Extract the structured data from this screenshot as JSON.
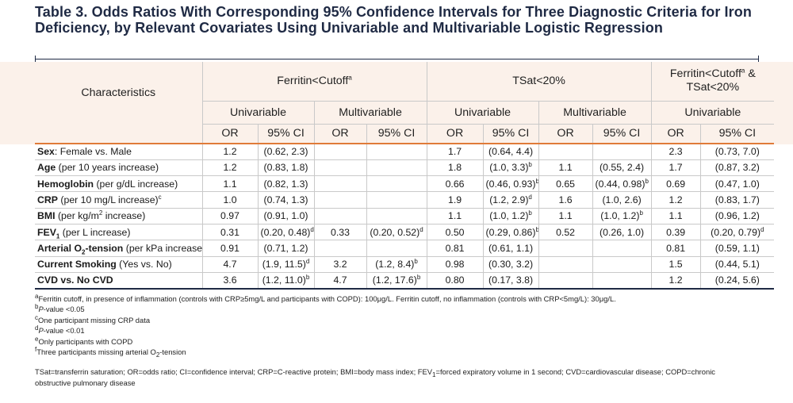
{
  "title": "Table 3. Odds Ratios With Corresponding 95% Confidence Intervals for Three Diagnostic Criteria for Iron Deficiency, by Relevant Covariates Using Univariable and Multivariable Logistic Regression",
  "headers": {
    "characteristics": "Characteristics",
    "group1": {
      "label": "Ferritin<Cutoff",
      "sup": "a"
    },
    "group2": {
      "label": "TSat<20%"
    },
    "group3": {
      "line1": "Ferritin<Cutoff",
      "sup": "a",
      "line1_tail": " &",
      "line2": "TSat<20%"
    },
    "univariable": "Univariable",
    "multivariable": "Multivariable",
    "or": "OR",
    "ci": "95% CI"
  },
  "rows": [
    {
      "label_bold": "Sex",
      "label_rest": ": Female vs. Male",
      "label_sup": "",
      "cells": [
        [
          "1.2",
          ""
        ],
        [
          "(0.62, 2.3)",
          ""
        ],
        [
          "",
          ""
        ],
        [
          "",
          ""
        ],
        [
          "1.7",
          ""
        ],
        [
          "(0.64, 4.4)",
          ""
        ],
        [
          "",
          ""
        ],
        [
          "",
          ""
        ],
        [
          "2.3",
          ""
        ],
        [
          "(0.73, 7.0)",
          ""
        ]
      ]
    },
    {
      "label_bold": "Age",
      "label_rest": " (per 10 years increase)",
      "label_sup": "",
      "cells": [
        [
          "1.2",
          ""
        ],
        [
          "(0.83, 1.8)",
          ""
        ],
        [
          "",
          ""
        ],
        [
          "",
          ""
        ],
        [
          "1.8",
          ""
        ],
        [
          "(1.0, 3.3)",
          "b"
        ],
        [
          "1.1",
          ""
        ],
        [
          "(0.55, 2.4)",
          ""
        ],
        [
          "1.7",
          ""
        ],
        [
          "(0.87, 3.2)",
          ""
        ]
      ]
    },
    {
      "label_bold": "Hemoglobin",
      "label_rest": " (per g/dL increase)",
      "label_sup": "",
      "cells": [
        [
          "1.1",
          ""
        ],
        [
          "(0.82, 1.3)",
          ""
        ],
        [
          "",
          ""
        ],
        [
          "",
          ""
        ],
        [
          "0.66",
          ""
        ],
        [
          "(0.46, 0.93)",
          "b"
        ],
        [
          "0.65",
          ""
        ],
        [
          "(0.44, 0.98)",
          "b"
        ],
        [
          "0.69",
          ""
        ],
        [
          "(0.47, 1.0)",
          ""
        ]
      ]
    },
    {
      "label_bold": "CRP",
      "label_rest": " (per 10 mg/L increase)",
      "label_sup": "c",
      "cells": [
        [
          "1.0",
          ""
        ],
        [
          "(0.74, 1.3)",
          ""
        ],
        [
          "",
          ""
        ],
        [
          "",
          ""
        ],
        [
          "1.9",
          ""
        ],
        [
          "(1.2, 2.9)",
          "d"
        ],
        [
          "1.6",
          ""
        ],
        [
          "(1.0, 2.6)",
          ""
        ],
        [
          "1.2",
          ""
        ],
        [
          "(0.83, 1.7)",
          ""
        ]
      ]
    },
    {
      "label_bold": "BMI",
      "label_rest": " (per kg/m",
      "label_rest_sup": "2",
      "label_rest2": " increase)",
      "label_sup": "",
      "cells": [
        [
          "0.97",
          ""
        ],
        [
          "(0.91, 1.0)",
          ""
        ],
        [
          "",
          ""
        ],
        [
          "",
          ""
        ],
        [
          "1.1",
          ""
        ],
        [
          "(1.0, 1.2)",
          "b"
        ],
        [
          "1.1",
          ""
        ],
        [
          "(1.0, 1.2)",
          "b"
        ],
        [
          "1.1",
          ""
        ],
        [
          "(0.96, 1.2)",
          ""
        ]
      ]
    },
    {
      "label_bold": "FEV",
      "label_bold_sub": "1",
      "label_rest": " (per L increase)",
      "label_sup": "",
      "cells": [
        [
          "0.31",
          ""
        ],
        [
          "(0.20, 0.48)",
          "d"
        ],
        [
          "0.33",
          ""
        ],
        [
          "(0.20, 0.52)",
          "d"
        ],
        [
          "0.50",
          ""
        ],
        [
          "(0.29, 0.86)",
          "b"
        ],
        [
          "0.52",
          ""
        ],
        [
          "(0.26, 1.0)",
          ""
        ],
        [
          "0.39",
          ""
        ],
        [
          "(0.20, 0.79)",
          "d"
        ]
      ]
    },
    {
      "label_bold": "Arterial O",
      "label_bold_sub": "2",
      "label_bold2": "-tension",
      "label_rest": " (per kPa increase)",
      "label_sup": "e,f",
      "cells": [
        [
          "0.91",
          ""
        ],
        [
          "(0.71, 1.2)",
          ""
        ],
        [
          "",
          ""
        ],
        [
          "",
          ""
        ],
        [
          "0.81",
          ""
        ],
        [
          "(0.61, 1.1)",
          ""
        ],
        [
          "",
          ""
        ],
        [
          "",
          ""
        ],
        [
          "0.81",
          ""
        ],
        [
          "(0.59, 1.1)",
          ""
        ]
      ]
    },
    {
      "label_bold": "Current Smoking",
      "label_rest": " (Yes vs. No)",
      "label_sup": "",
      "cells": [
        [
          "4.7",
          ""
        ],
        [
          "(1.9, 11.5)",
          "d"
        ],
        [
          "3.2",
          ""
        ],
        [
          "(1.2, 8.4)",
          "b"
        ],
        [
          "0.98",
          ""
        ],
        [
          "(0.30, 3.2)",
          ""
        ],
        [
          "",
          ""
        ],
        [
          "",
          ""
        ],
        [
          "1.5",
          ""
        ],
        [
          "(0.44, 5.1)",
          ""
        ]
      ]
    },
    {
      "label_bold": "CVD vs. No CVD",
      "label_rest": "",
      "label_sup": "",
      "cells": [
        [
          "3.6",
          ""
        ],
        [
          "(1.2, 11.0)",
          "b"
        ],
        [
          "4.7",
          ""
        ],
        [
          "(1.2, 17.6)",
          "b"
        ],
        [
          "0.80",
          ""
        ],
        [
          "(0.17, 3.8)",
          ""
        ],
        [
          "",
          ""
        ],
        [
          "",
          ""
        ],
        [
          "1.2",
          ""
        ],
        [
          "(0.24, 5.6)",
          ""
        ]
      ]
    }
  ],
  "footnotes": [
    {
      "mark": "a",
      "text": "Ferritin cutoff, in presence of inflammation (controls with CRP≥5mg/L and participants with COPD): 100μg/L. Ferritin cutoff, no inflammation (controls with CRP<5mg/L): 30μg/L."
    },
    {
      "mark": "b",
      "italic": "P",
      "text": "-value <0.05"
    },
    {
      "mark": "c",
      "text": "One participant missing CRP data"
    },
    {
      "mark": "d",
      "italic": "P",
      "text": "-value <0.01"
    },
    {
      "mark": "e",
      "text": "Only participants with COPD"
    },
    {
      "mark": "f",
      "text": "Three participants missing arterial O",
      "sub": "2",
      "text2": "-tension"
    }
  ],
  "abbreviations": {
    "text": "TSat=transferrin saturation; OR=odds ratio; CI=confidence interval; CRP=C-reactive protein; BMI=body mass index; FEV",
    "sub": "1",
    "text2": "=forced expiratory volume in 1 second; CVD=cardiovascular disease; COPD=chronic obstructive pulmonary disease"
  },
  "colors": {
    "title": "#1f2a44",
    "header_band": "#fbf1ea",
    "accent_rule": "#e07b39",
    "grid": "#c9c9c9"
  }
}
